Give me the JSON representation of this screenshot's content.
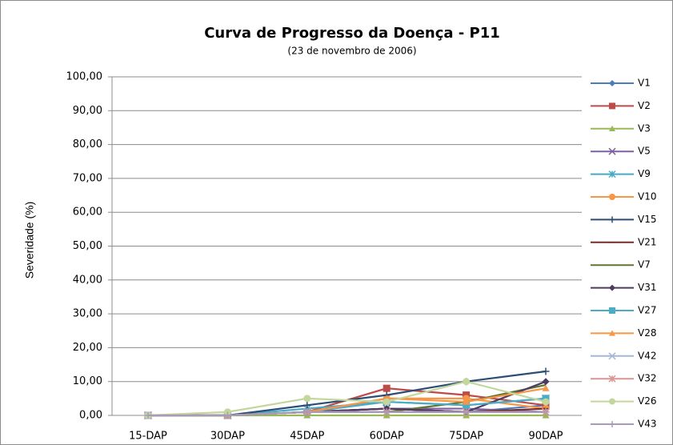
{
  "chart_data": {
    "type": "line",
    "title": "Curva de Progresso da Doença - P11",
    "subtitle": "(23 de novembro de 2006)",
    "y_label": "Severidade (%)",
    "categories": [
      "15-DAP",
      "30DAP",
      "45DAP",
      "60DAP",
      "75DAP",
      "90DAP"
    ],
    "ylim": [
      0,
      100
    ],
    "yticks": [
      {
        "value": 0,
        "label": "0,00"
      },
      {
        "value": 10,
        "label": "10,00"
      },
      {
        "value": 20,
        "label": "20,00"
      },
      {
        "value": 30,
        "label": "30,00"
      },
      {
        "value": 40,
        "label": "40,00"
      },
      {
        "value": 50,
        "label": "50,00"
      },
      {
        "value": 60,
        "label": "60,00"
      },
      {
        "value": 70,
        "label": "70,00"
      },
      {
        "value": 80,
        "label": "80,00"
      },
      {
        "value": 90,
        "label": "90,00"
      },
      {
        "value": 100,
        "label": "100,00"
      }
    ],
    "grid": true,
    "legend": "right",
    "series": [
      {
        "name": "V1",
        "color": "#4a7ebb",
        "marker": "diamond",
        "values": [
          0,
          0,
          1,
          2,
          1,
          3
        ]
      },
      {
        "name": "V2",
        "color": "#be4b48",
        "marker": "square",
        "values": [
          0,
          0,
          1,
          8,
          6,
          3
        ]
      },
      {
        "name": "V3",
        "color": "#98b954",
        "marker": "triangle",
        "values": [
          0,
          0,
          0,
          0,
          0,
          0
        ]
      },
      {
        "name": "V5",
        "color": "#7d60a0",
        "marker": "x",
        "values": [
          0,
          0,
          1,
          2,
          2,
          1
        ]
      },
      {
        "name": "V9",
        "color": "#46aac5",
        "marker": "star",
        "values": [
          0,
          0,
          2,
          4,
          3,
          5
        ]
      },
      {
        "name": "V10",
        "color": "#f79646",
        "marker": "circle",
        "values": [
          0,
          0,
          1,
          5,
          5,
          2
        ]
      },
      {
        "name": "V15",
        "color": "#2c4d75",
        "marker": "plus",
        "values": [
          0,
          0,
          3,
          6,
          10,
          13
        ]
      },
      {
        "name": "V21",
        "color": "#772c2a",
        "marker": "dash",
        "values": [
          0,
          0,
          1,
          2,
          1,
          2
        ]
      },
      {
        "name": "V7",
        "color": "#5f7530",
        "marker": "none",
        "values": [
          0,
          0,
          1,
          1,
          4,
          9
        ]
      },
      {
        "name": "V31",
        "color": "#4d3b62",
        "marker": "diamond",
        "values": [
          0,
          0,
          1,
          2,
          1,
          10
        ]
      },
      {
        "name": "V27",
        "color": "#4bacc6",
        "marker": "square",
        "values": [
          0,
          0,
          1,
          4,
          3,
          5
        ]
      },
      {
        "name": "V28",
        "color": "#f79646",
        "marker": "triangle",
        "values": [
          0,
          0,
          1,
          5,
          4,
          8
        ]
      },
      {
        "name": "V42",
        "color": "#a5b6d6",
        "marker": "x",
        "values": [
          0,
          0,
          1,
          1,
          1,
          1
        ]
      },
      {
        "name": "V32",
        "color": "#d99694",
        "marker": "star",
        "values": [
          0,
          0,
          1,
          1,
          1,
          1
        ]
      },
      {
        "name": "V26",
        "color": "#c3d69b",
        "marker": "circle",
        "values": [
          0,
          1,
          5,
          4,
          10,
          4
        ]
      },
      {
        "name": "V43",
        "color": "#a69bb8",
        "marker": "plus",
        "values": [
          0,
          0,
          1,
          1,
          1,
          1
        ]
      }
    ]
  }
}
